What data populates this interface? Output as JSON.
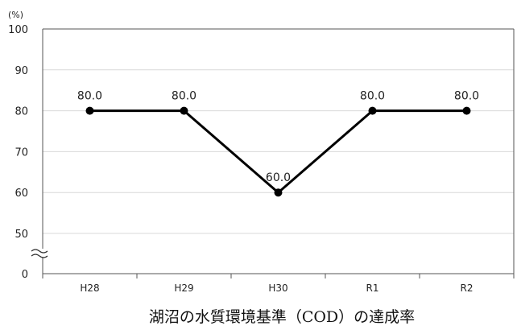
{
  "chart_data": {
    "type": "line",
    "title": "湖沼の水質環境基準（COD）の達成率",
    "unit_label": "(%)",
    "categories": [
      "H28",
      "H29",
      "H30",
      "R1",
      "R2"
    ],
    "series": [
      {
        "values": [
          80.0,
          80.0,
          60.0,
          80.0,
          80.0
        ],
        "data_labels": [
          "80.0",
          "80.0",
          "60.0",
          "80.0",
          "80.0"
        ]
      }
    ],
    "yticks": [
      0,
      50,
      60,
      70,
      80,
      90,
      100
    ],
    "ylim": [
      0,
      100
    ],
    "axis_break": true,
    "grid": true,
    "line_color": "#000000",
    "grid_color": "#d9d9d9"
  }
}
